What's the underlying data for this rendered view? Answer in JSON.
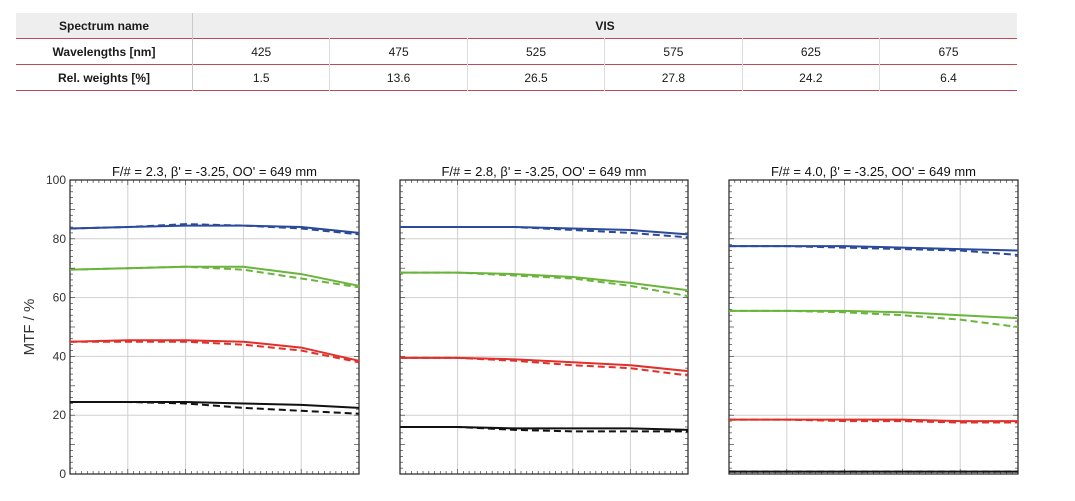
{
  "table": {
    "header": {
      "label": "Spectrum name",
      "value": "VIS"
    },
    "rows": [
      {
        "label": "Wavelengths [nm]",
        "values": [
          "425",
          "475",
          "525",
          "575",
          "625",
          "675"
        ]
      },
      {
        "label": "Rel. weights [%]",
        "values": [
          "1.5",
          "13.6",
          "26.5",
          "27.8",
          "24.2",
          "6.4"
        ]
      }
    ]
  },
  "colors": {
    "blue": "#2b4a9a",
    "green": "#6ab43c",
    "red": "#e0302a",
    "black": "#111111",
    "table_rule": "#c04a5a"
  },
  "chart_data": [
    {
      "type": "line",
      "title": "F/# = 2.3, β' = -3.25, OO' = 649 mm",
      "ylabel": "MTF / %",
      "ylim": [
        0,
        100
      ],
      "yticks": [
        0,
        20,
        40,
        60,
        80,
        100
      ],
      "x": [
        0,
        0.2,
        0.4,
        0.6,
        0.8,
        1.0
      ],
      "series": [
        {
          "color": "blue",
          "style": "solid",
          "values": [
            83.5,
            84,
            84.5,
            84.5,
            84,
            82
          ]
        },
        {
          "color": "blue",
          "style": "dashed",
          "values": [
            83.5,
            84,
            85,
            84.5,
            83.5,
            81.5
          ]
        },
        {
          "color": "green",
          "style": "solid",
          "values": [
            69.5,
            70,
            70.5,
            70.5,
            68,
            64
          ]
        },
        {
          "color": "green",
          "style": "dashed",
          "values": [
            69.5,
            70,
            70.5,
            69.5,
            66.5,
            63.5
          ]
        },
        {
          "color": "red",
          "style": "solid",
          "values": [
            45,
            45.5,
            45.5,
            45,
            43,
            38.5
          ]
        },
        {
          "color": "red",
          "style": "dashed",
          "values": [
            45,
            45,
            45,
            44,
            42,
            38
          ]
        },
        {
          "color": "black",
          "style": "solid",
          "values": [
            24.5,
            24.5,
            24.5,
            24,
            23.5,
            22.5
          ]
        },
        {
          "color": "black",
          "style": "dashed",
          "values": [
            24.5,
            24.5,
            24,
            22.5,
            21.5,
            20.5
          ]
        }
      ]
    },
    {
      "type": "line",
      "title": "F/# = 2.8, β' = -3.25, OO' = 649 mm",
      "ylim": [
        0,
        100
      ],
      "yticks": [
        0,
        20,
        40,
        60,
        80,
        100
      ],
      "x": [
        0,
        0.2,
        0.4,
        0.6,
        0.8,
        1.0
      ],
      "series": [
        {
          "color": "blue",
          "style": "solid",
          "values": [
            84,
            84,
            84,
            83.5,
            83,
            81.5
          ]
        },
        {
          "color": "blue",
          "style": "dashed",
          "values": [
            84,
            84,
            84,
            83,
            82,
            80.5
          ]
        },
        {
          "color": "green",
          "style": "solid",
          "values": [
            68.5,
            68.5,
            68,
            67,
            65,
            62.5
          ]
        },
        {
          "color": "green",
          "style": "dashed",
          "values": [
            68.5,
            68.5,
            67.5,
            66.5,
            64,
            60.5
          ]
        },
        {
          "color": "red",
          "style": "solid",
          "values": [
            39.5,
            39.5,
            39,
            38,
            37,
            35
          ]
        },
        {
          "color": "red",
          "style": "dashed",
          "values": [
            39.5,
            39.5,
            38.5,
            37,
            36,
            33.5
          ]
        },
        {
          "color": "black",
          "style": "solid",
          "values": [
            16,
            16,
            15.5,
            15.5,
            15.5,
            15
          ]
        },
        {
          "color": "black",
          "style": "dashed",
          "values": [
            16,
            16,
            15,
            14.5,
            14.5,
            14.5
          ]
        }
      ]
    },
    {
      "type": "line",
      "title": "F/# = 4.0, β' = -3.25, OO' = 649 mm",
      "ylim": [
        0,
        100
      ],
      "yticks": [
        0,
        20,
        40,
        60,
        80,
        100
      ],
      "x": [
        0,
        0.2,
        0.4,
        0.6,
        0.8,
        1.0
      ],
      "series": [
        {
          "color": "blue",
          "style": "solid",
          "values": [
            77.5,
            77.5,
            77.5,
            77,
            76.5,
            76
          ]
        },
        {
          "color": "blue",
          "style": "dashed",
          "values": [
            77.5,
            77.5,
            77,
            76.5,
            76,
            74.5
          ]
        },
        {
          "color": "green",
          "style": "solid",
          "values": [
            55.5,
            55.5,
            55.5,
            55,
            54,
            53
          ]
        },
        {
          "color": "green",
          "style": "dashed",
          "values": [
            55.5,
            55.5,
            55,
            54,
            52.5,
            50
          ]
        },
        {
          "color": "red",
          "style": "solid",
          "values": [
            18.5,
            18.5,
            18.5,
            18.5,
            18,
            18
          ]
        },
        {
          "color": "red",
          "style": "dashed",
          "values": [
            18.5,
            18.5,
            18,
            18,
            17.5,
            17.5
          ]
        },
        {
          "color": "black",
          "style": "solid",
          "values": [
            0.8,
            0.8,
            0.8,
            0.8,
            0.8,
            0.8
          ]
        },
        {
          "color": "black",
          "style": "dashed",
          "values": [
            0.8,
            0.8,
            0.8,
            0.8,
            0.8,
            0.8
          ]
        }
      ]
    }
  ]
}
